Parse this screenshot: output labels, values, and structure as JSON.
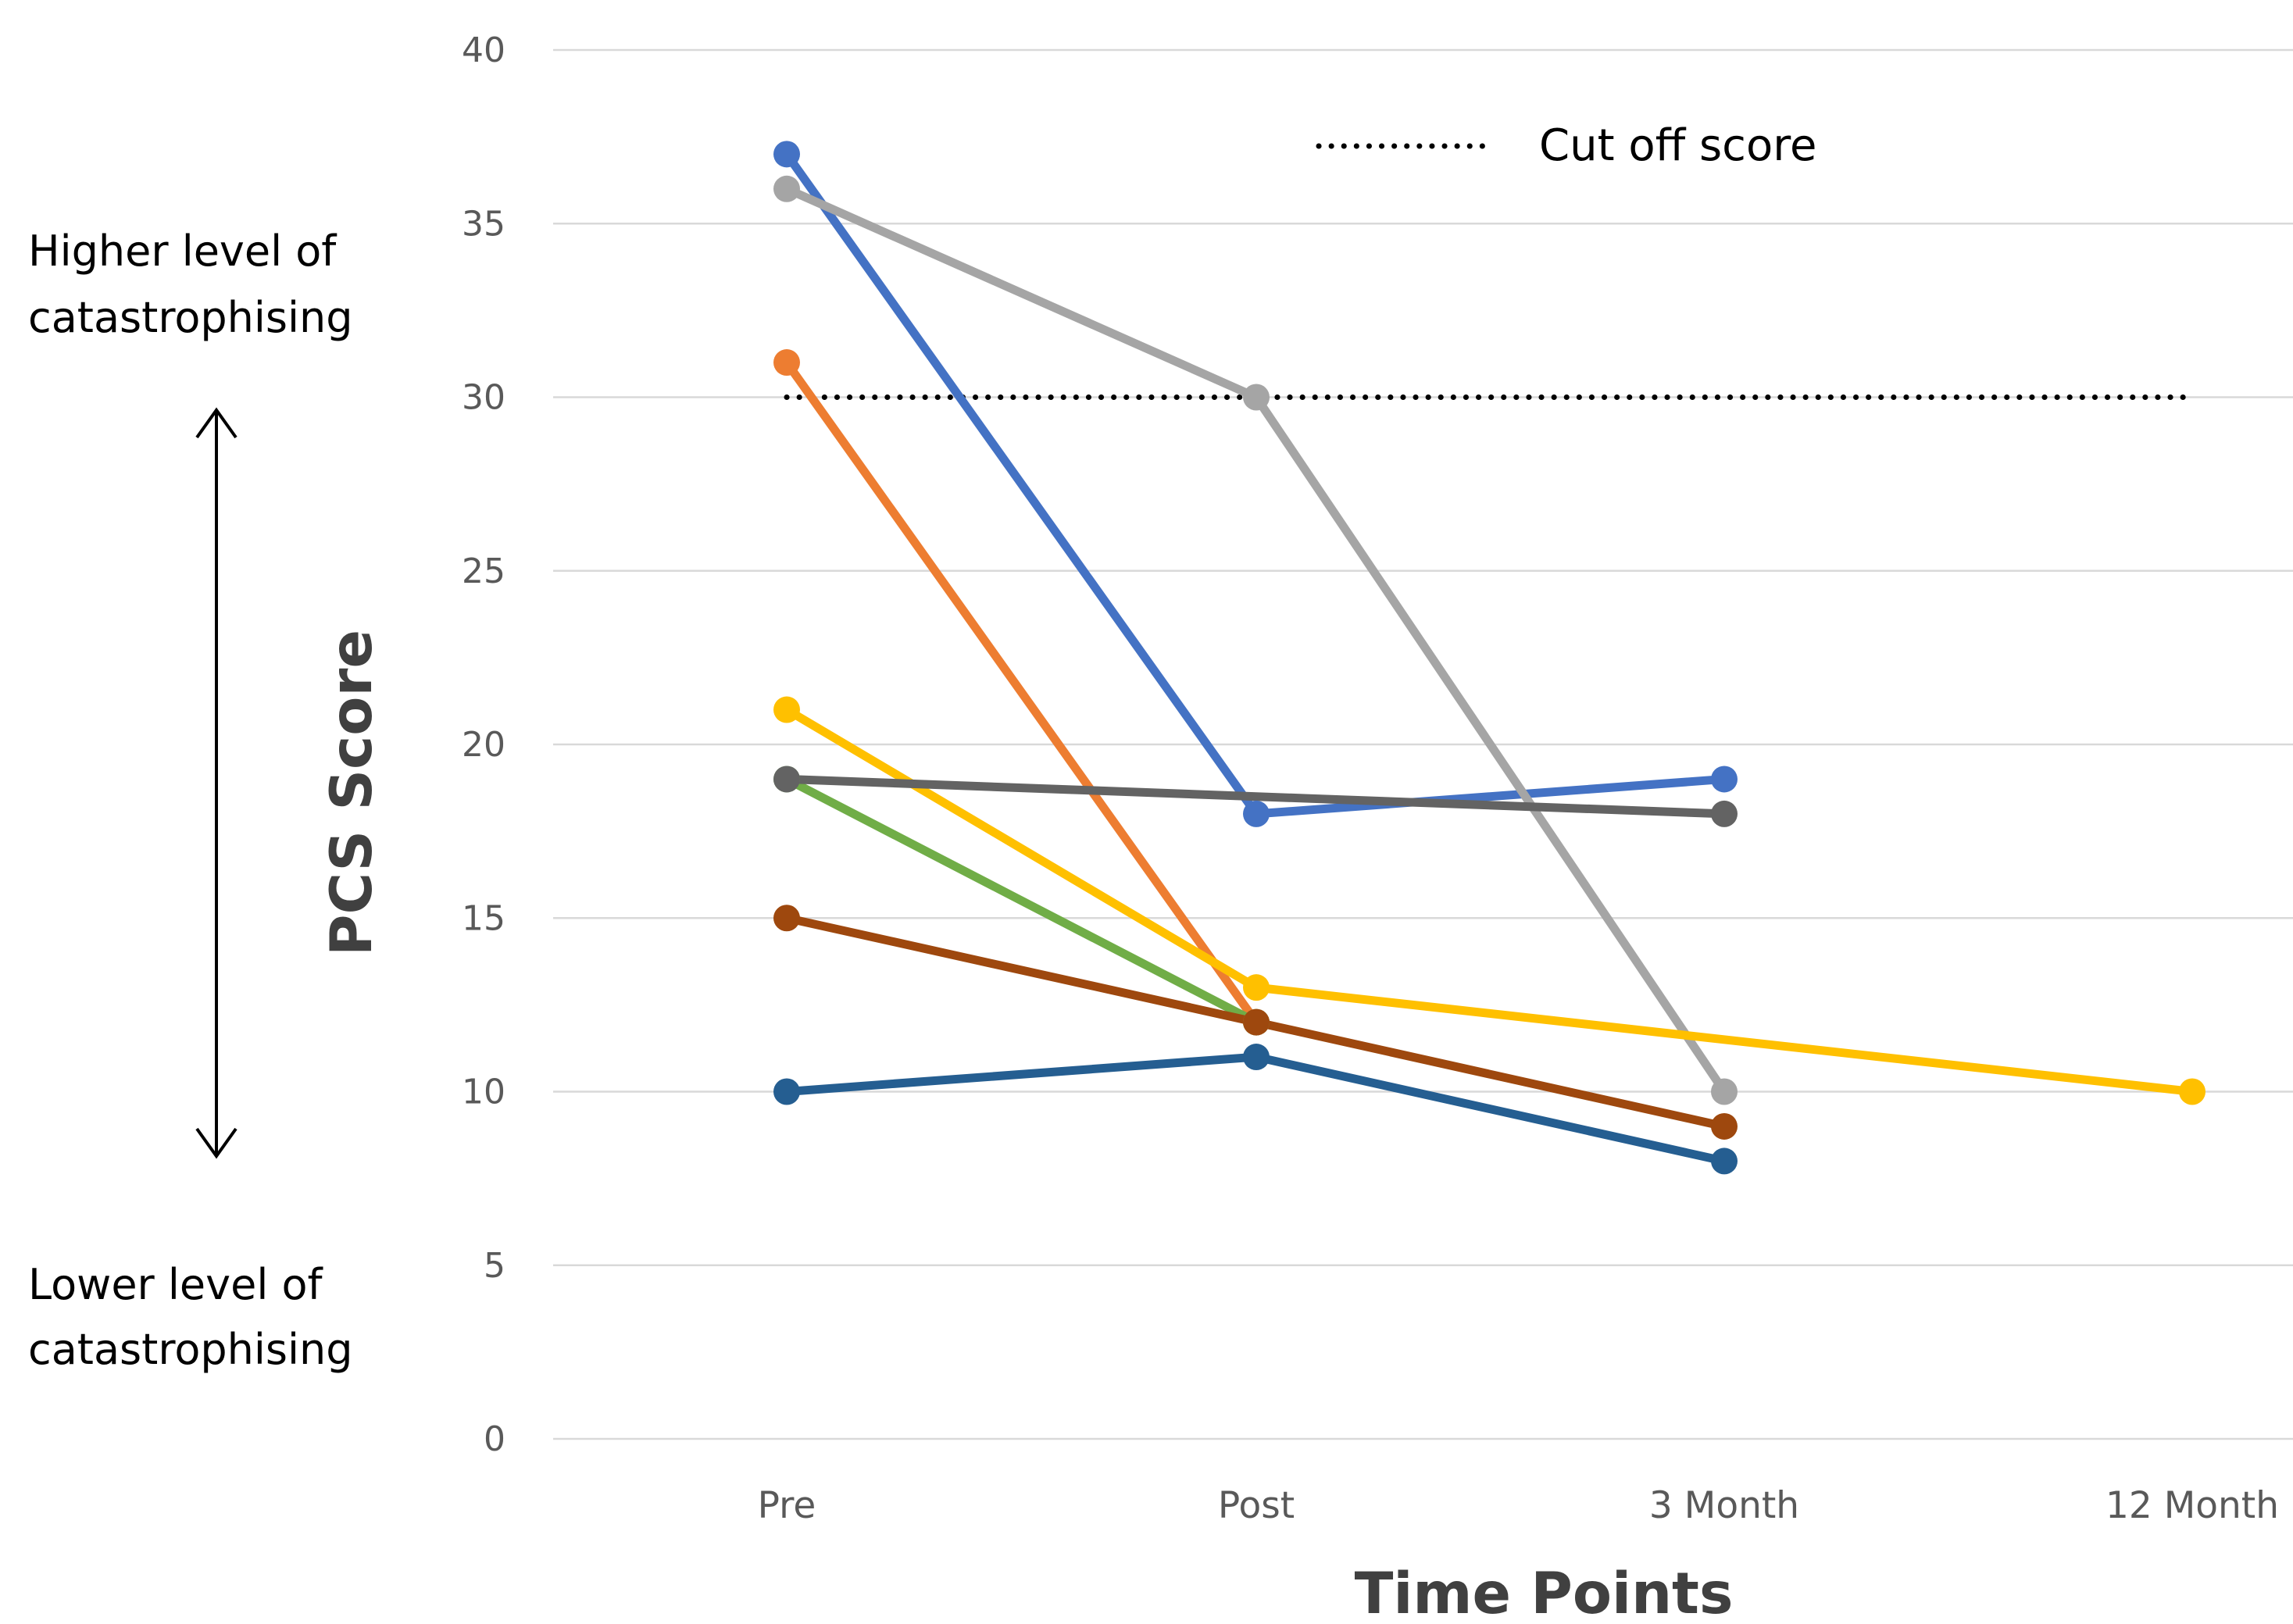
{
  "chart_data": {
    "type": "line",
    "title": "",
    "xlabel": "Time Points",
    "ylabel": "PCS Score",
    "categories": [
      "Pre",
      "Post",
      "3 Month",
      "12 Month"
    ],
    "ylim": [
      0,
      40
    ],
    "yticks": [
      0,
      5,
      10,
      15,
      20,
      25,
      30,
      35,
      40
    ],
    "grid": true,
    "legend": {
      "position": "top-center",
      "entries": [
        "Cut off score"
      ]
    },
    "reference_line": {
      "label": "Cut off score",
      "y": 30,
      "style": "dotted",
      "color": "#000000"
    },
    "annotations": {
      "high": [
        "Higher level of",
        "catastrophising"
      ],
      "low": [
        "Lower level of",
        "catastrophising"
      ]
    },
    "series": [
      {
        "color": "#4472c4",
        "values": [
          37,
          18,
          19,
          null
        ]
      },
      {
        "color": "#a5a5a5",
        "values": [
          36,
          30,
          10,
          null
        ]
      },
      {
        "color": "#ed7d31",
        "values": [
          31,
          12,
          null,
          null
        ]
      },
      {
        "color": "#70ad47",
        "values": [
          19,
          12,
          null,
          null
        ]
      },
      {
        "color": "#ffc000",
        "values": [
          21,
          13,
          null,
          10
        ]
      },
      {
        "color": "#9e480e",
        "values": [
          15,
          12,
          9,
          null
        ]
      },
      {
        "color": "#255e91",
        "values": [
          10,
          11,
          8,
          null
        ]
      },
      {
        "color": "#636363",
        "values": [
          19,
          null,
          18,
          null
        ]
      }
    ]
  }
}
